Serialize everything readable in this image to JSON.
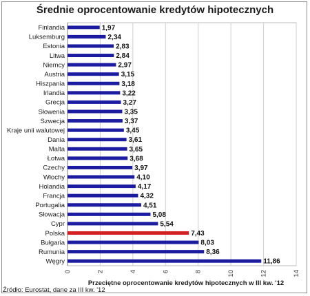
{
  "chart_data": {
    "type": "bar",
    "orientation": "horizontal",
    "title": "Średnie oprocentowanie kredytów hipotecznych",
    "xlabel": "Przeciętne oprocentowanie kredytów hipotecznych w III kw. '12",
    "ylabel": "",
    "xlim": [
      0,
      14
    ],
    "x_ticks": [
      "0",
      "2",
      "4",
      "6",
      "8",
      "10",
      "12",
      "14"
    ],
    "grid": "vertical",
    "categories": [
      "Finlandia",
      "Luksemburg",
      "Estonia",
      "Litwa",
      "Niemcy",
      "Austria",
      "Hiszpania",
      "Irlandia",
      "Grecja",
      "Słowenia",
      "Szwecja",
      "Kraje unii walutowej",
      "Dania",
      "Malta",
      "Łotwa",
      "Czechy",
      "Włochy",
      "Holandia",
      "Francja",
      "Portugalia",
      "Słowacja",
      "Cypr",
      "Polska",
      "Bułgaria",
      "Rumunia",
      "Węgry"
    ],
    "values": [
      1.97,
      2.34,
      2.83,
      2.84,
      2.97,
      3.15,
      3.18,
      3.22,
      3.27,
      3.35,
      3.37,
      3.45,
      3.61,
      3.65,
      3.68,
      3.97,
      4.1,
      4.17,
      4.32,
      4.51,
      5.08,
      5.54,
      7.43,
      8.03,
      8.36,
      11.86
    ],
    "value_labels": [
      "1,97",
      "2,34",
      "2,83",
      "2,84",
      "2,97",
      "3,15",
      "3,18",
      "3,22",
      "3,27",
      "3,35",
      "3,37",
      "3,45",
      "3,61",
      "3,65",
      "3,68",
      "3,97",
      "4,10",
      "4,17",
      "4,32",
      "4,51",
      "5,08",
      "5,54",
      "7,43",
      "8,03",
      "8,36",
      "11,86"
    ],
    "highlight": "Polska",
    "colors": {
      "bar": "#1c1ca0",
      "highlight": "#d42020",
      "grid": "#cfcfcf"
    }
  },
  "source": "Źródło: Eurostat, dane za III kw. '12"
}
